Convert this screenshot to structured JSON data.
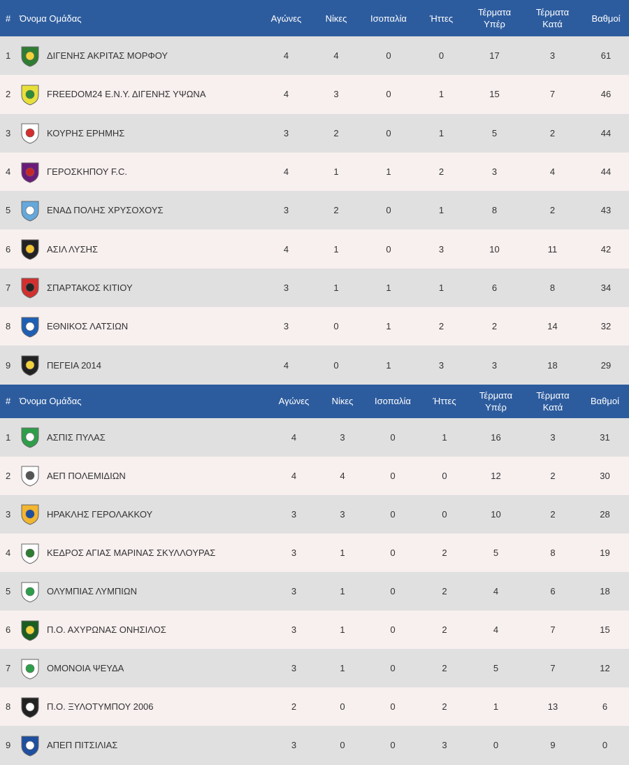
{
  "columns": {
    "rank": "#",
    "team": "Όνομα Ομάδας",
    "played": "Αγώνες",
    "wins": "Νίκες",
    "draws": "Ισοπαλία",
    "losses": "Ήττες",
    "gf_line1": "Τέρματα",
    "gf_line2": "Υπέρ",
    "ga_line1": "Τέρματα",
    "ga_line2": "Κατά",
    "points": "Βαθμοί"
  },
  "group1": [
    {
      "rank": "1",
      "team": "ΔΙΓΕΝΗΣ ΑΚΡΙΤΑΣ ΜΟΡΦΟΥ",
      "played": "4",
      "wins": "4",
      "draws": "0",
      "losses": "0",
      "gf": "17",
      "ga": "3",
      "points": "61",
      "logo": "digenis-morfou-crest",
      "c1": "#2e7d32",
      "c2": "#f2d13b"
    },
    {
      "rank": "2",
      "team": "FREEDOM24 Ε.Ν.Υ. ΔΙΓΕΝΗΣ ΥΨΩΝΑ",
      "played": "4",
      "wins": "3",
      "draws": "0",
      "losses": "1",
      "gf": "15",
      "ga": "7",
      "points": "46",
      "logo": "digenis-ypsona-crest",
      "c1": "#e8e03a",
      "c2": "#2e8b3a"
    },
    {
      "rank": "3",
      "team": "ΚΟΥΡΗΣ ΕΡΗΜΗΣ",
      "played": "3",
      "wins": "2",
      "draws": "0",
      "losses": "1",
      "gf": "5",
      "ga": "2",
      "points": "44",
      "logo": "kouris-crest",
      "c1": "#ffffff",
      "c2": "#d32f2f"
    },
    {
      "rank": "4",
      "team": "ΓΕΡΟΣΚΗΠΟΥ F.C.",
      "played": "4",
      "wins": "1",
      "draws": "1",
      "losses": "2",
      "gf": "3",
      "ga": "4",
      "points": "44",
      "logo": "geroskipou-crest",
      "c1": "#6a1b7a",
      "c2": "#c62828"
    },
    {
      "rank": "5",
      "team": "ΕΝΑΔ ΠΟΛΗΣ ΧΡΥΣΟΧΟΥΣ",
      "played": "3",
      "wins": "2",
      "draws": "0",
      "losses": "1",
      "gf": "8",
      "ga": "2",
      "points": "43",
      "logo": "enad-crest",
      "c1": "#64a8dc",
      "c2": "#ffffff"
    },
    {
      "rank": "6",
      "team": "ΑΣΙΛ ΛΥΣΗΣ",
      "played": "4",
      "wins": "1",
      "draws": "0",
      "losses": "3",
      "gf": "10",
      "ga": "11",
      "points": "42",
      "logo": "asil-crest",
      "c1": "#222222",
      "c2": "#f2c230"
    },
    {
      "rank": "7",
      "team": "ΣΠΑΡΤΑΚΟΣ ΚΙΤΙΟΥ",
      "played": "3",
      "wins": "1",
      "draws": "1",
      "losses": "1",
      "gf": "6",
      "ga": "8",
      "points": "34",
      "logo": "spartakos-crest",
      "c1": "#d32f2f",
      "c2": "#222222"
    },
    {
      "rank": "8",
      "team": "ΕΘΝΙΚΟΣ ΛΑΤΣΙΩΝ",
      "played": "3",
      "wins": "0",
      "draws": "1",
      "losses": "2",
      "gf": "2",
      "ga": "14",
      "points": "32",
      "logo": "ethnikos-crest",
      "c1": "#1e5fb4",
      "c2": "#ffffff"
    },
    {
      "rank": "9",
      "team": "ΠΕΓΕΙΑ 2014",
      "played": "4",
      "wins": "0",
      "draws": "1",
      "losses": "3",
      "gf": "3",
      "ga": "18",
      "points": "29",
      "logo": "pegeia-crest",
      "c1": "#222222",
      "c2": "#f2d13b"
    }
  ],
  "group2": [
    {
      "rank": "1",
      "team": "ΑΣΠΙΣ ΠΥΛΑΣ",
      "played": "4",
      "wins": "3",
      "draws": "0",
      "losses": "1",
      "gf": "16",
      "ga": "3",
      "points": "31",
      "logo": "aspis-crest",
      "c1": "#2e9e4a",
      "c2": "#ffffff"
    },
    {
      "rank": "2",
      "team": "ΑΕΠ ΠΟΛΕΜΙΔΙΩΝ",
      "played": "4",
      "wins": "4",
      "draws": "0",
      "losses": "0",
      "gf": "12",
      "ga": "2",
      "points": "30",
      "logo": "aep-crest",
      "c1": "#ffffff",
      "c2": "#555555"
    },
    {
      "rank": "3",
      "team": "ΗΡΑΚΛΗΣ ΓΕΡΟΛΑΚΚΟΥ",
      "played": "3",
      "wins": "3",
      "draws": "0",
      "losses": "0",
      "gf": "10",
      "ga": "2",
      "points": "28",
      "logo": "iraklis-crest",
      "c1": "#f2b630",
      "c2": "#1e4fa0"
    },
    {
      "rank": "4",
      "team": "ΚΕΔΡΟΣ ΑΓΙΑΣ ΜΑΡΙΝΑΣ ΣΚΥΛΛΟΥΡΑΣ",
      "played": "3",
      "wins": "1",
      "draws": "0",
      "losses": "2",
      "gf": "5",
      "ga": "8",
      "points": "19",
      "logo": "kedros-crest",
      "c1": "#ffffff",
      "c2": "#2e7d32"
    },
    {
      "rank": "5",
      "team": "ΟΛΥΜΠΙΑΣ ΛΥΜΠΙΩΝ",
      "played": "3",
      "wins": "1",
      "draws": "0",
      "losses": "2",
      "gf": "4",
      "ga": "6",
      "points": "18",
      "logo": "olympias-crest",
      "c1": "#ffffff",
      "c2": "#2e9e4a"
    },
    {
      "rank": "6",
      "team": "Π.Ο. ΑΧΥΡΩΝΑΣ ΟΝΗΣΙΛΟΣ",
      "played": "3",
      "wins": "1",
      "draws": "0",
      "losses": "2",
      "gf": "4",
      "ga": "7",
      "points": "15",
      "logo": "achyronas-crest",
      "c1": "#1b5e20",
      "c2": "#f2d13b"
    },
    {
      "rank": "7",
      "team": "ΟΜΟΝΟΙΑ ΨΕΥΔΑ",
      "played": "3",
      "wins": "1",
      "draws": "0",
      "losses": "2",
      "gf": "5",
      "ga": "7",
      "points": "12",
      "logo": "omonoia-crest",
      "c1": "#ffffff",
      "c2": "#2e9e4a"
    },
    {
      "rank": "8",
      "team": "Π.Ο. ΞΥΛΟΤΥΜΠΟΥ 2006",
      "played": "2",
      "wins": "0",
      "draws": "0",
      "losses": "2",
      "gf": "1",
      "ga": "13",
      "points": "6",
      "logo": "xylotymbou-crest",
      "c1": "#222222",
      "c2": "#ffffff"
    },
    {
      "rank": "9",
      "team": "ΑΠΕΠ ΠΙΤΣΙΛΙΑΣ",
      "played": "3",
      "wins": "0",
      "draws": "0",
      "losses": "3",
      "gf": "0",
      "ga": "9",
      "points": "0",
      "logo": "apep-crest",
      "c1": "#1e4fa0",
      "c2": "#ffffff"
    }
  ]
}
